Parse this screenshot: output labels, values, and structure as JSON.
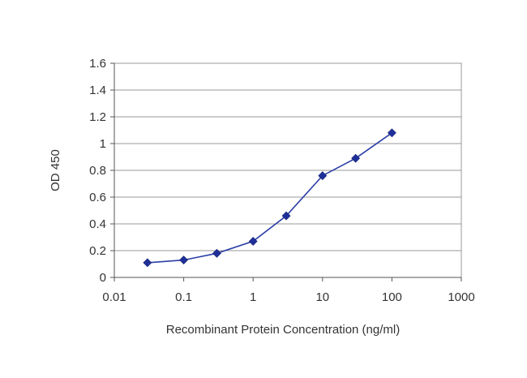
{
  "chart_data": {
    "type": "line",
    "title": "",
    "xlabel": "Recombinant Protein Concentration (ng/ml)",
    "ylabel": "OD 450",
    "x_scale": "log",
    "xlim": [
      0.01,
      1000
    ],
    "ylim": [
      0,
      1.6
    ],
    "x_ticks": [
      "0.01",
      "0.1",
      "1",
      "10",
      "100",
      "1000"
    ],
    "y_ticks": [
      "0",
      "0.2",
      "0.4",
      "0.6",
      "0.8",
      "1",
      "1.2",
      "1.4",
      "1.6"
    ],
    "grid": true,
    "legend": "none",
    "series": [
      {
        "x": [
          0.03,
          0.1,
          0.3,
          1,
          3,
          10,
          30,
          100
        ],
        "y": [
          0.11,
          0.13,
          0.18,
          0.27,
          0.46,
          0.76,
          0.89,
          1.08
        ]
      }
    ],
    "colors": {
      "line": "#2b3ea6",
      "marker": "#1f2f9a",
      "grid": "#9a9a9a",
      "axis": "#555555"
    }
  }
}
